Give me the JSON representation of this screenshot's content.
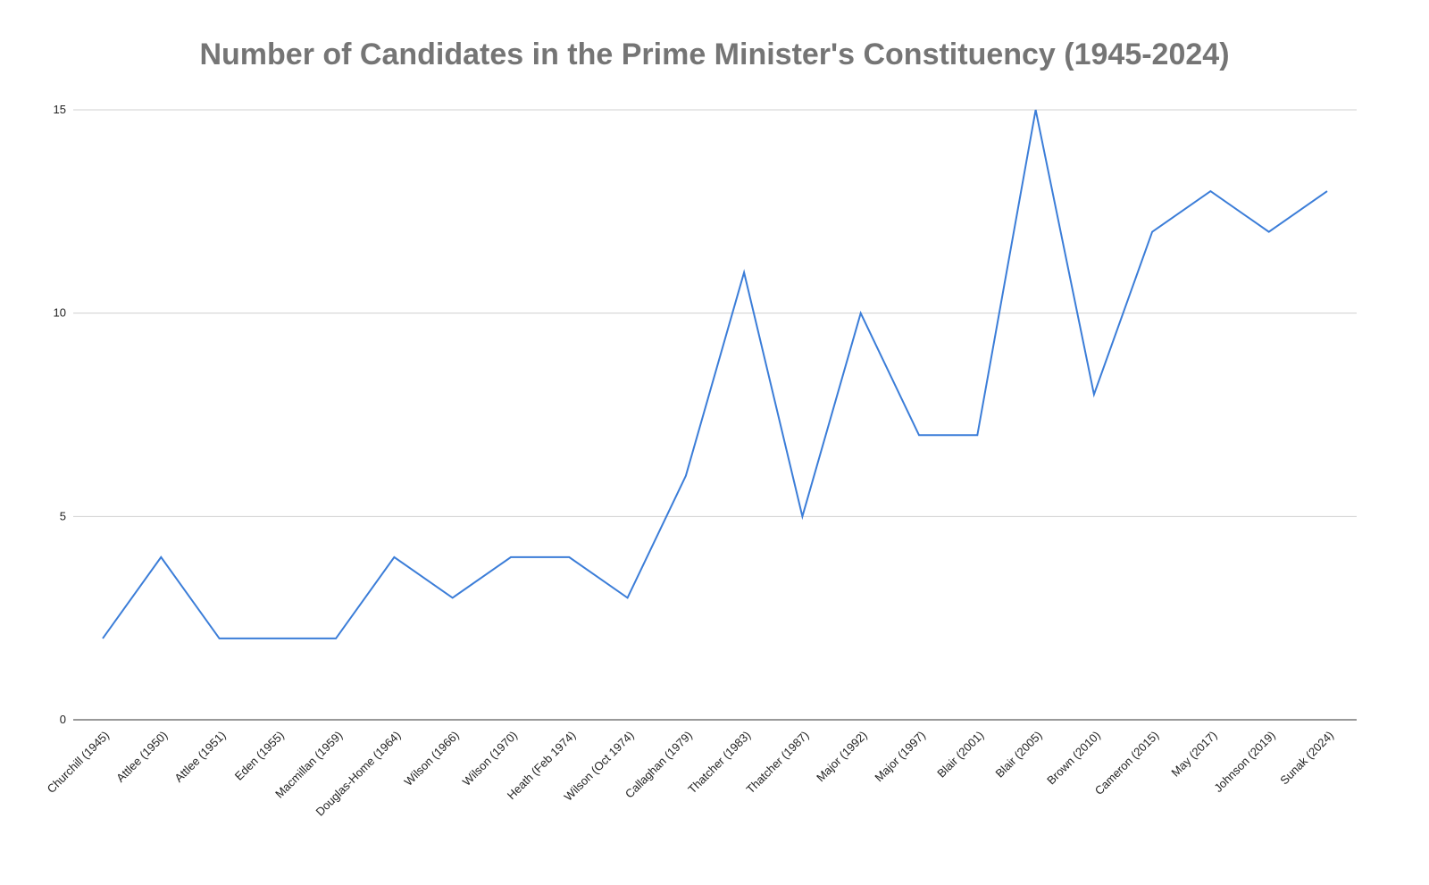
{
  "chart_data": {
    "type": "line",
    "title": "Number of Candidates in the Prime Minister's Constituency (1945-2024)",
    "xlabel": "",
    "ylabel": "",
    "categories": [
      "Churchill (1945)",
      "Attlee (1950)",
      "Attlee (1951)",
      "Eden (1955)",
      "Macmillan (1959)",
      "Douglas-Home (1964)",
      "Wilson (1966)",
      "Wilson (1970)",
      "Heath (Feb 1974)",
      "Wilson (Oct 1974)",
      "Callaghan (1979)",
      "Thatcher (1983)",
      "Thatcher (1987)",
      "Major (1992)",
      "Major (1997)",
      "Blair (2001)",
      "Blair (2005)",
      "Brown (2010)",
      "Cameron (2015)",
      "May (2017)",
      "Johnson (2019)",
      "Sunak (2024)"
    ],
    "series": [
      {
        "color": "#3b7dd8",
        "values": [
          2,
          4,
          2,
          2,
          2,
          4,
          3,
          4,
          4,
          3,
          6,
          11,
          5,
          10,
          7,
          7,
          15,
          8,
          12,
          13,
          12,
          13
        ]
      }
    ],
    "yticks": [
      "0",
      "5",
      "10",
      "15"
    ],
    "ylim": [
      0,
      15
    ],
    "grid": true,
    "legend": "none"
  }
}
